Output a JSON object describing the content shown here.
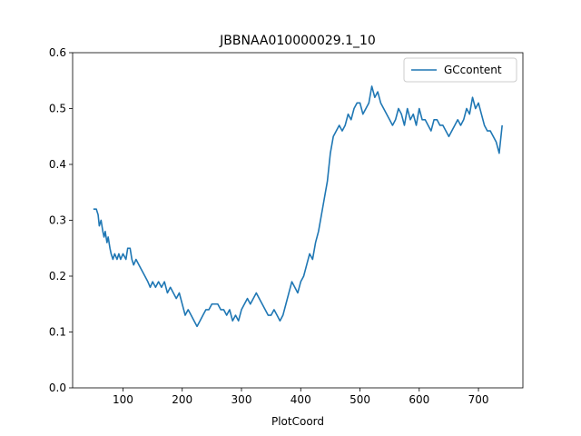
{
  "chart_data": {
    "type": "line",
    "title": "JBBNAA010000029.1_10",
    "xlabel": "PlotCoord",
    "ylabel": "",
    "xlim": [
      15,
      775
    ],
    "ylim": [
      0.0,
      0.6
    ],
    "xticks": [
      100,
      200,
      300,
      400,
      500,
      600,
      700
    ],
    "xtick_labels": [
      "100",
      "200",
      "300",
      "400",
      "500",
      "600",
      "700"
    ],
    "yticks": [
      0.0,
      0.1,
      0.2,
      0.3,
      0.4,
      0.5,
      0.6
    ],
    "ytick_labels": [
      "0.0",
      "0.1",
      "0.2",
      "0.3",
      "0.4",
      "0.5",
      "0.6"
    ],
    "grid": false,
    "legend_position": "top-right",
    "series": [
      {
        "name": "GCcontent",
        "color": "#1f77b4",
        "x": [
          50,
          55,
          58,
          60,
          63,
          66,
          68,
          70,
          73,
          75,
          78,
          80,
          83,
          86,
          90,
          93,
          96,
          100,
          105,
          108,
          112,
          115,
          118,
          122,
          127,
          132,
          137,
          142,
          146,
          150,
          155,
          160,
          165,
          170,
          175,
          180,
          185,
          190,
          195,
          200,
          205,
          210,
          215,
          220,
          225,
          230,
          235,
          240,
          245,
          250,
          255,
          260,
          265,
          270,
          275,
          280,
          285,
          290,
          295,
          300,
          305,
          310,
          315,
          320,
          325,
          330,
          335,
          340,
          345,
          350,
          355,
          360,
          365,
          370,
          375,
          380,
          385,
          390,
          395,
          400,
          405,
          410,
          415,
          420,
          425,
          430,
          435,
          440,
          445,
          450,
          455,
          460,
          465,
          470,
          475,
          480,
          485,
          490,
          495,
          500,
          505,
          510,
          515,
          520,
          525,
          530,
          535,
          540,
          545,
          550,
          555,
          560,
          565,
          570,
          575,
          580,
          585,
          590,
          595,
          600,
          605,
          610,
          615,
          620,
          625,
          630,
          635,
          640,
          645,
          650,
          655,
          660,
          665,
          670,
          675,
          680,
          685,
          690,
          695,
          700,
          705,
          710,
          715,
          720,
          725,
          730,
          735,
          740
        ],
        "values": [
          0.32,
          0.32,
          0.31,
          0.29,
          0.3,
          0.28,
          0.27,
          0.28,
          0.26,
          0.27,
          0.25,
          0.24,
          0.23,
          0.24,
          0.23,
          0.24,
          0.23,
          0.24,
          0.23,
          0.25,
          0.25,
          0.23,
          0.22,
          0.23,
          0.22,
          0.21,
          0.2,
          0.19,
          0.18,
          0.19,
          0.18,
          0.19,
          0.18,
          0.19,
          0.17,
          0.18,
          0.17,
          0.16,
          0.17,
          0.15,
          0.13,
          0.14,
          0.13,
          0.12,
          0.11,
          0.12,
          0.13,
          0.14,
          0.14,
          0.15,
          0.15,
          0.15,
          0.14,
          0.14,
          0.13,
          0.14,
          0.12,
          0.13,
          0.12,
          0.14,
          0.15,
          0.16,
          0.15,
          0.16,
          0.17,
          0.16,
          0.15,
          0.14,
          0.13,
          0.13,
          0.14,
          0.13,
          0.12,
          0.13,
          0.15,
          0.17,
          0.19,
          0.18,
          0.17,
          0.19,
          0.2,
          0.22,
          0.24,
          0.23,
          0.26,
          0.28,
          0.31,
          0.34,
          0.37,
          0.42,
          0.45,
          0.46,
          0.47,
          0.46,
          0.47,
          0.49,
          0.48,
          0.5,
          0.51,
          0.51,
          0.49,
          0.5,
          0.51,
          0.54,
          0.52,
          0.53,
          0.51,
          0.5,
          0.49,
          0.48,
          0.47,
          0.48,
          0.5,
          0.49,
          0.47,
          0.5,
          0.48,
          0.49,
          0.47,
          0.5,
          0.48,
          0.48,
          0.47,
          0.46,
          0.48,
          0.48,
          0.47,
          0.47,
          0.46,
          0.45,
          0.46,
          0.47,
          0.48,
          0.47,
          0.48,
          0.5,
          0.49,
          0.52,
          0.5,
          0.51,
          0.49,
          0.47,
          0.46,
          0.46,
          0.45,
          0.44,
          0.42,
          0.47
        ]
      }
    ]
  }
}
